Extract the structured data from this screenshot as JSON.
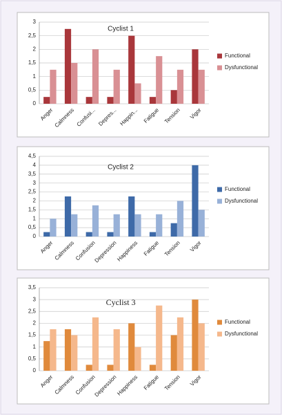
{
  "chart_data": [
    {
      "type": "bar",
      "title": "Cyclist 1",
      "categories": [
        "Anger",
        "Calmness",
        "Confusi...",
        "Depres...",
        "Happin...",
        "Fatigue",
        "Tension",
        "Vigor"
      ],
      "series": [
        {
          "name": "Functional",
          "color": "#a9373b",
          "values": [
            0.25,
            2.75,
            0.25,
            0.25,
            2.5,
            0.25,
            0.5,
            2
          ]
        },
        {
          "name": "Dysfunctional",
          "color": "#d99094",
          "values": [
            1.25,
            1.5,
            2,
            1.25,
            0.75,
            1.75,
            1.25,
            1.25
          ]
        }
      ],
      "ylim": [
        0,
        3
      ],
      "yticks": [
        0,
        {
          "value": 0.5,
          "label": "0,5"
        },
        1,
        {
          "value": 1.5,
          "label": "1,5"
        },
        2,
        {
          "value": 2.5,
          "label": "2,5"
        },
        3
      ],
      "grid": true,
      "legend": "right"
    },
    {
      "type": "bar",
      "title": "Cyclist 2",
      "categories": [
        "Anger",
        "Calmness",
        "Confusion",
        "Depression",
        "Happiness",
        "Fatigue",
        "Tension",
        "Vigor"
      ],
      "series": [
        {
          "name": "Functional",
          "color": "#3e6aa8",
          "values": [
            0.25,
            2.25,
            0.25,
            0.25,
            2.25,
            0.25,
            0.75,
            4
          ]
        },
        {
          "name": "Dysfunctional",
          "color": "#98b1d8",
          "values": [
            1,
            1.25,
            1.75,
            1.25,
            1.25,
            1.25,
            2,
            1.5
          ]
        }
      ],
      "ylim": [
        0,
        4.5
      ],
      "yticks": [
        0,
        {
          "value": 0.5,
          "label": "0,5"
        },
        1,
        {
          "value": 1.5,
          "label": "1,5"
        },
        2,
        {
          "value": 2.5,
          "label": "2,5"
        },
        3,
        {
          "value": 3.5,
          "label": "3,5"
        },
        4,
        {
          "value": 4.5,
          "label": "4,5"
        }
      ],
      "grid": true,
      "legend": "right"
    },
    {
      "type": "bar",
      "title": "Cyclist 3",
      "categories": [
        "Anger",
        "Calmness",
        "Confusion",
        "Depression",
        "Happiness",
        "Fatigue",
        "Tension",
        "Vigor"
      ],
      "series": [
        {
          "name": "Functional",
          "color": "#e08a3c",
          "values": [
            1.25,
            1.75,
            0.25,
            0.25,
            2,
            0.25,
            1.5,
            3
          ]
        },
        {
          "name": "Dysfunctional",
          "color": "#f5b88c",
          "values": [
            1.75,
            1.5,
            2.25,
            1.75,
            1,
            2.75,
            2.25,
            2
          ]
        }
      ],
      "ylim": [
        0,
        3.5
      ],
      "yticks": [
        0,
        {
          "value": 0.5,
          "label": "0,5"
        },
        1,
        {
          "value": 1.5,
          "label": "1,5"
        },
        2,
        {
          "value": 2.5,
          "label": "2,5"
        },
        3,
        {
          "value": 3.5,
          "label": "3,5"
        }
      ],
      "grid": true,
      "legend": "right"
    }
  ]
}
